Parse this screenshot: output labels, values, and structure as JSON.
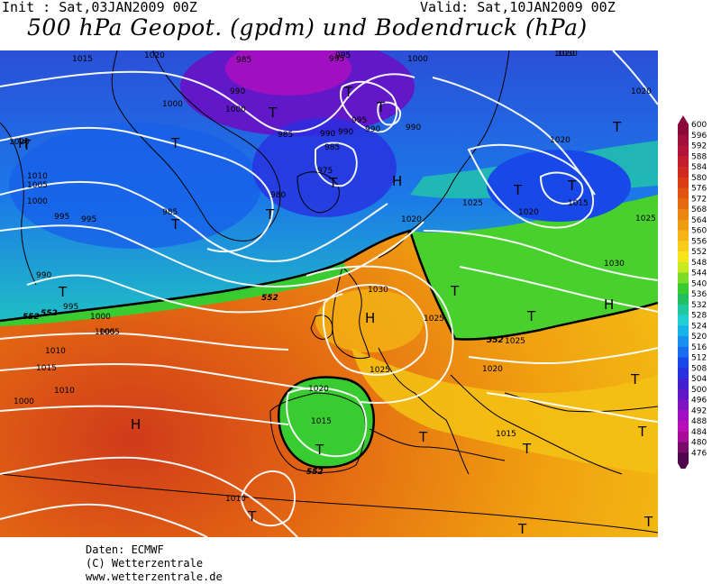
{
  "header": {
    "init": "Init : Sat,03JAN2009 00Z",
    "valid": "Valid: Sat,10JAN2009 00Z",
    "title": "500 hPa Geopot. (gpdm) und Bodendruck (hPa)"
  },
  "credits": {
    "line1": "Daten: ECMWF",
    "line2": "(C) Wetterzentrale",
    "line3": "www.wetterzentrale.de"
  },
  "colors": {
    "sea_land_outline": "#000000",
    "isobar": "#ffffff",
    "contour_552": "#000000"
  },
  "color_scale": {
    "values": [
      "600",
      "596",
      "592",
      "588",
      "584",
      "580",
      "576",
      "572",
      "568",
      "564",
      "560",
      "556",
      "552",
      "548",
      "544",
      "540",
      "536",
      "532",
      "528",
      "524",
      "520",
      "516",
      "512",
      "508",
      "504",
      "500",
      "496",
      "492",
      "488",
      "484",
      "480",
      "476"
    ],
    "colors": [
      "#8b0a3a",
      "#a0103a",
      "#b4143a",
      "#c41e2e",
      "#d02a1e",
      "#dc3c14",
      "#e25212",
      "#e66a10",
      "#ec8410",
      "#f09c10",
      "#f4b414",
      "#f8cc18",
      "#f8e418",
      "#c8e820",
      "#7cdc28",
      "#38cc30",
      "#20c060",
      "#20c8a0",
      "#20d0d0",
      "#18b4e8",
      "#1890f0",
      "#186cf0",
      "#1848e8",
      "#2830e0",
      "#4020d0",
      "#6018c8",
      "#8014c0",
      "#a010c0",
      "#b810b8",
      "#a80c98",
      "#780c68",
      "#50084c"
    ]
  },
  "map": {
    "pressure_labels": [
      "1020",
      "1015",
      "985",
      "995",
      "1000",
      "1030",
      "1020",
      "1020",
      "1005",
      "1010",
      "1000",
      "995",
      "985",
      "990",
      "995",
      "1000",
      "1005",
      "1000",
      "995",
      "990",
      "1000",
      "985",
      "990",
      "980",
      "975",
      "985",
      "990",
      "995",
      "990",
      "990",
      "1020",
      "1030",
      "1025",
      "1020",
      "1025",
      "1015",
      "1020",
      "1025",
      "1030",
      "1025",
      "1020",
      "1010",
      "1015",
      "1005",
      "1000",
      "995",
      "1010",
      "1015",
      "1020",
      "1020",
      "1025",
      "1015",
      "1010",
      "552",
      "552",
      "552",
      "552",
      "552"
    ],
    "symbols": [
      "T",
      "T",
      "T",
      "T",
      "T",
      "T",
      "T",
      "T",
      "T",
      "T",
      "T",
      "T",
      "T",
      "T",
      "T",
      "T",
      "T",
      "T",
      "T",
      "T",
      "T",
      "T",
      "H",
      "H",
      "H",
      "H",
      "H"
    ]
  }
}
